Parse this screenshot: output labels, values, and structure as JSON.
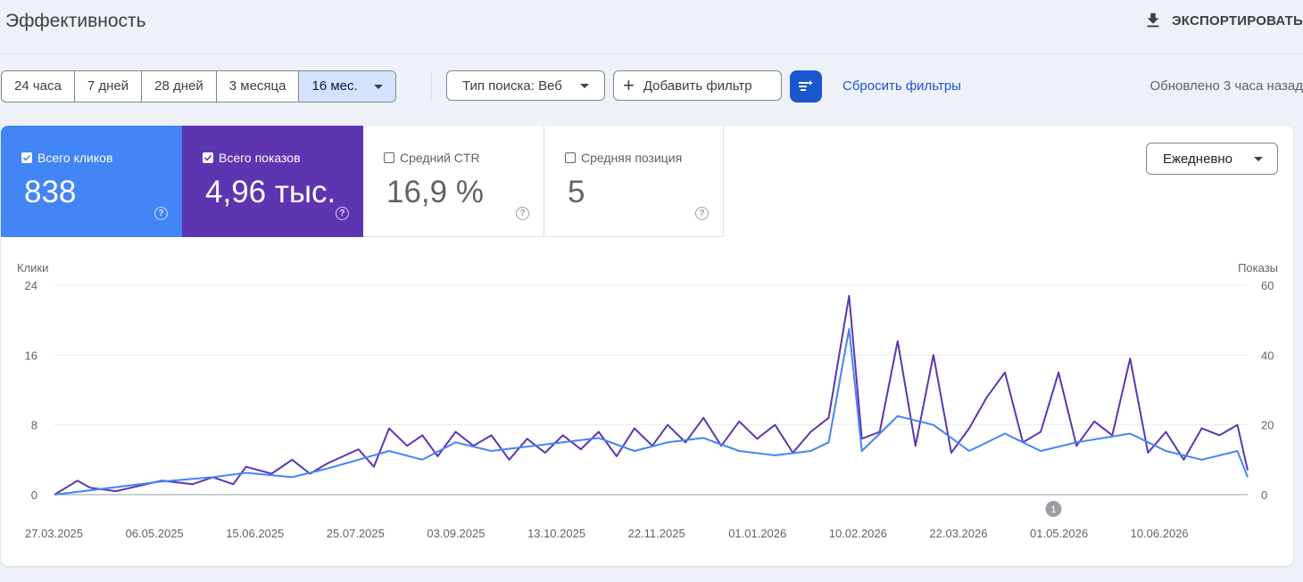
{
  "header": {
    "title": "Эффективность",
    "export_label": "ЭКСПОРТИРОВАТЬ"
  },
  "toolbar": {
    "ranges": [
      "24 часа",
      "7 дней",
      "28 дней",
      "3 месяца",
      "16 мес."
    ],
    "active_range": "16 мес.",
    "search_type": "Тип поиска: Веб",
    "add_filter": "Добавить фильтр",
    "reset_filters": "Сбросить фильтры",
    "updated": "Обновлено 3 часа назад"
  },
  "metrics": [
    {
      "label": "Всего кликов",
      "value": "838",
      "checked": true,
      "color": "#4285f4"
    },
    {
      "label": "Всего показов",
      "value": "4,96 тыс.",
      "checked": true,
      "color": "#5e35b1"
    },
    {
      "label": "Средний CTR",
      "value": "16,9 %",
      "checked": false
    },
    {
      "label": "Средняя позиция",
      "value": "5",
      "checked": false
    }
  ],
  "granularity": "Ежедневно",
  "chart_data": {
    "type": "line",
    "left_axis_label": "Клики",
    "right_axis_label": "Показы",
    "left_ticks": [
      0,
      8,
      16,
      24
    ],
    "right_ticks": [
      0,
      20,
      40,
      60
    ],
    "ylim_left": [
      0,
      24
    ],
    "ylim_right": [
      0,
      60
    ],
    "x_tick_labels": [
      "27.03.2025",
      "06.05.2025",
      "15.06.2025",
      "25.07.2025",
      "03.09.2025",
      "13.10.2025",
      "22.11.2025",
      "01.01.2026",
      "10.02.2026",
      "22.03.2026",
      "01.05.2026",
      "10.06.2026"
    ],
    "annotation": {
      "label": "1",
      "date": "2026-04-22"
    },
    "series": [
      {
        "name": "Всего показов",
        "axis": "right",
        "color": "#5e35b1",
        "points": [
          [
            "2025-03-27",
            0
          ],
          [
            "2025-04-05",
            4
          ],
          [
            "2025-04-10",
            2
          ],
          [
            "2025-04-20",
            1
          ],
          [
            "2025-05-08",
            4
          ],
          [
            "2025-05-20",
            3
          ],
          [
            "2025-05-28",
            5
          ],
          [
            "2025-06-05",
            3
          ],
          [
            "2025-06-10",
            8
          ],
          [
            "2025-06-20",
            6
          ],
          [
            "2025-06-28",
            10
          ],
          [
            "2025-07-05",
            6
          ],
          [
            "2025-07-12",
            9
          ],
          [
            "2025-07-18",
            11
          ],
          [
            "2025-07-24",
            13
          ],
          [
            "2025-07-30",
            8
          ],
          [
            "2025-08-05",
            19
          ],
          [
            "2025-08-12",
            14
          ],
          [
            "2025-08-18",
            17
          ],
          [
            "2025-08-24",
            11
          ],
          [
            "2025-08-31",
            18
          ],
          [
            "2025-09-07",
            14
          ],
          [
            "2025-09-14",
            17
          ],
          [
            "2025-09-21",
            10
          ],
          [
            "2025-09-28",
            16
          ],
          [
            "2025-10-05",
            12
          ],
          [
            "2025-10-12",
            17
          ],
          [
            "2025-10-19",
            13
          ],
          [
            "2025-10-26",
            18
          ],
          [
            "2025-11-02",
            11
          ],
          [
            "2025-11-09",
            19
          ],
          [
            "2025-11-16",
            14
          ],
          [
            "2025-11-22",
            20
          ],
          [
            "2025-11-29",
            15
          ],
          [
            "2025-12-06",
            22
          ],
          [
            "2025-12-13",
            14
          ],
          [
            "2025-12-20",
            21
          ],
          [
            "2025-12-27",
            16
          ],
          [
            "2026-01-03",
            20
          ],
          [
            "2026-01-10",
            12
          ],
          [
            "2026-01-17",
            18
          ],
          [
            "2026-01-24",
            22
          ],
          [
            "2026-02-01",
            57
          ],
          [
            "2026-02-06",
            16
          ],
          [
            "2026-02-13",
            18
          ],
          [
            "2026-02-20",
            44
          ],
          [
            "2026-02-27",
            14
          ],
          [
            "2026-03-06",
            40
          ],
          [
            "2026-03-13",
            12
          ],
          [
            "2026-03-20",
            19
          ],
          [
            "2026-03-27",
            28
          ],
          [
            "2026-04-03",
            35
          ],
          [
            "2026-04-10",
            15
          ],
          [
            "2026-04-17",
            18
          ],
          [
            "2026-04-24",
            35
          ],
          [
            "2026-05-01",
            14
          ],
          [
            "2026-05-08",
            21
          ],
          [
            "2026-05-15",
            17
          ],
          [
            "2026-05-22",
            39
          ],
          [
            "2026-05-29",
            12
          ],
          [
            "2026-06-05",
            18
          ],
          [
            "2026-06-12",
            10
          ],
          [
            "2026-06-19",
            19
          ],
          [
            "2026-06-26",
            17
          ],
          [
            "2026-07-03",
            20
          ],
          [
            "2026-07-07",
            7
          ]
        ]
      },
      {
        "name": "Всего кликов",
        "axis": "left",
        "color": "#4285f4",
        "points": [
          [
            "2025-03-27",
            0
          ],
          [
            "2025-04-10",
            0.5
          ],
          [
            "2025-05-08",
            1.5
          ],
          [
            "2025-05-28",
            2
          ],
          [
            "2025-06-10",
            2.5
          ],
          [
            "2025-06-28",
            2
          ],
          [
            "2025-07-12",
            3
          ],
          [
            "2025-07-24",
            4
          ],
          [
            "2025-08-05",
            5
          ],
          [
            "2025-08-18",
            4
          ],
          [
            "2025-08-31",
            6
          ],
          [
            "2025-09-14",
            5
          ],
          [
            "2025-09-28",
            5.5
          ],
          [
            "2025-10-12",
            6
          ],
          [
            "2025-10-26",
            6.5
          ],
          [
            "2025-11-09",
            5
          ],
          [
            "2025-11-22",
            6
          ],
          [
            "2025-12-06",
            6.5
          ],
          [
            "2025-12-20",
            5
          ],
          [
            "2026-01-03",
            4.5
          ],
          [
            "2026-01-17",
            5
          ],
          [
            "2026-01-24",
            6
          ],
          [
            "2026-02-01",
            19
          ],
          [
            "2026-02-06",
            5
          ],
          [
            "2026-02-20",
            9
          ],
          [
            "2026-03-06",
            8
          ],
          [
            "2026-03-20",
            5
          ],
          [
            "2026-04-03",
            7
          ],
          [
            "2026-04-17",
            5
          ],
          [
            "2026-05-01",
            6
          ],
          [
            "2026-05-22",
            7
          ],
          [
            "2026-06-05",
            5
          ],
          [
            "2026-06-19",
            4
          ],
          [
            "2026-07-03",
            5
          ],
          [
            "2026-07-07",
            2
          ]
        ]
      }
    ]
  }
}
